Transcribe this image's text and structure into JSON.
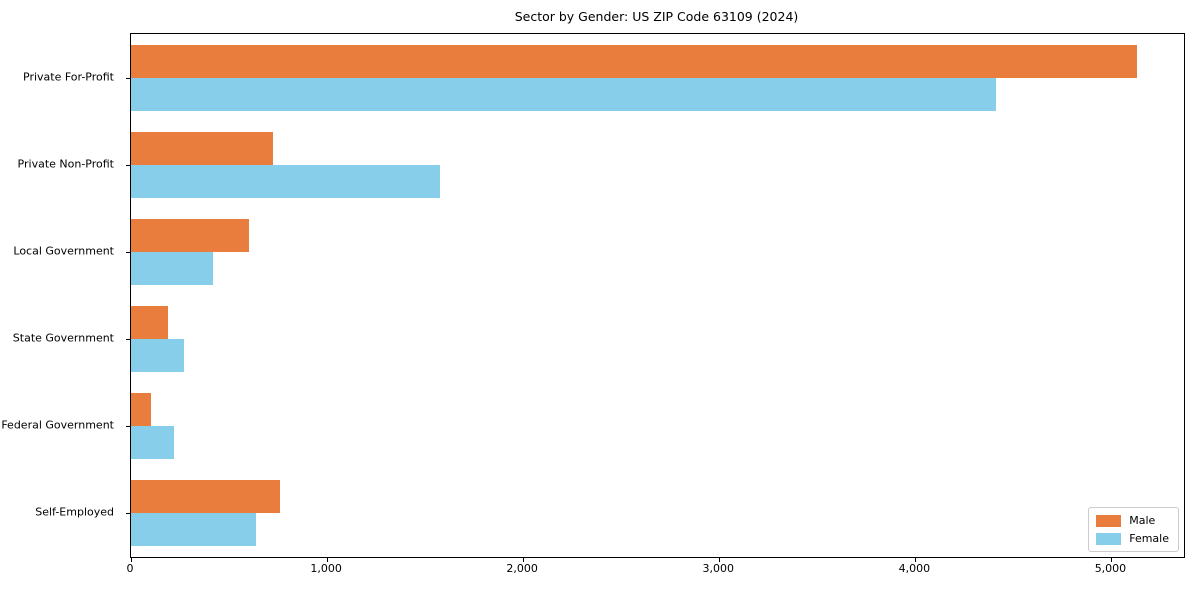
{
  "title": "Sector by Gender: US ZIP Code 63109 (2024)",
  "colors": {
    "male": "#e87d3e",
    "female": "#87ceeb",
    "spine": "#000000",
    "legend_border": "#cccccc",
    "background": "#ffffff"
  },
  "chart_data": {
    "type": "bar",
    "orientation": "horizontal",
    "title": "Sector by Gender: US ZIP Code 63109 (2024)",
    "categories": [
      "Private For-Profit",
      "Private Non-Profit",
      "Local Government",
      "State Government",
      "Federal Government",
      "Self-Employed"
    ],
    "series": [
      {
        "name": "Male",
        "color": "#e87d3e",
        "values": [
          5130,
          725,
          600,
          190,
          100,
          760
        ]
      },
      {
        "name": "Female",
        "color": "#87ceeb",
        "values": [
          4410,
          1575,
          420,
          270,
          220,
          640
        ]
      }
    ],
    "xlabel": "",
    "ylabel": "",
    "xlim": [
      0,
      5370
    ],
    "xticks": [
      0,
      1000,
      2000,
      3000,
      4000,
      5000
    ],
    "xtick_labels": [
      "0",
      "1,000",
      "2,000",
      "3,000",
      "4,000",
      "5,000"
    ],
    "grid": false,
    "legend_position": "lower right"
  }
}
